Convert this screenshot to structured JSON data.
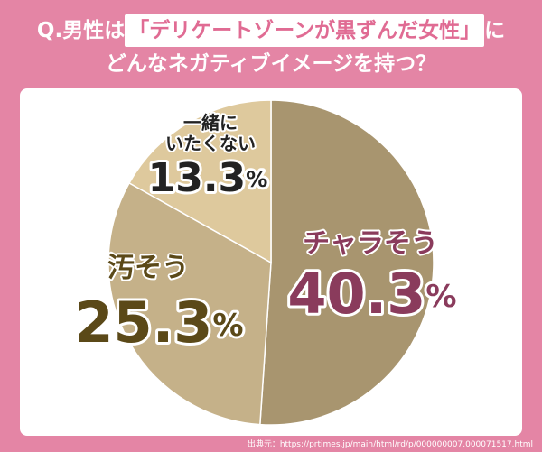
{
  "chart_data": {
    "type": "pie",
    "title": {
      "prefix": "Q.男性は",
      "highlight": "「デリケートゾーンが黒ずんだ女性」",
      "suffix": "に",
      "line2": "どんなネガティブイメージを持つ？"
    },
    "categories": [
      "チャラそう",
      "汚そう",
      "一緒に\nいたくない"
    ],
    "values": [
      40.3,
      25.3,
      13.3
    ],
    "value_labels": [
      "40.3%",
      "25.3%",
      "13.3%"
    ],
    "colors": [
      "#a8956f",
      "#c5b189",
      "#dec99d"
    ],
    "label_colors": [
      "#8a3b5c",
      "#5b4918",
      "#222222"
    ],
    "source": "出典元：https://prtimes.jp/main/html/rd/p/000000007.000071517.html"
  }
}
